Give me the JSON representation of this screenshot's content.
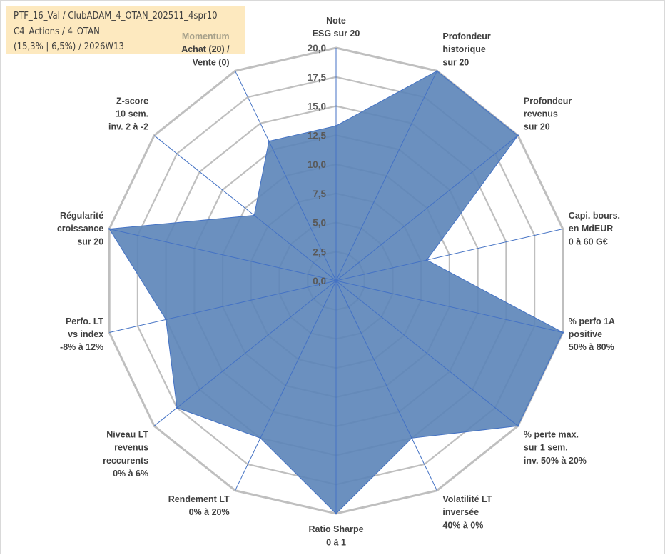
{
  "info": {
    "line1": "PTF_16_Val / ClubADAM_4_OTAN_202511_4spr10",
    "line2": "C4_Actions / 4_OTAN",
    "line3": "(15,3% | 6,5%) / 2026W13"
  },
  "colors": {
    "fill": "#5b84b8",
    "stroke": "#4472c4",
    "grid": "#bfbfbf",
    "highlight_bg": "#fde9bf"
  },
  "chart_data": {
    "type": "radar",
    "max": 20,
    "ticks": [
      "0,0",
      "2,5",
      "5,0",
      "7,5",
      "10,0",
      "12,5",
      "15,0",
      "17,5",
      "20,0"
    ],
    "tick_values": [
      0,
      2.5,
      5,
      7.5,
      10,
      12.5,
      15,
      17.5,
      20
    ],
    "axes": [
      {
        "lines": [
          "Note",
          "ESG sur 20"
        ],
        "value": 13.3
      },
      {
        "lines": [
          "Profondeur",
          "historique",
          "sur 20"
        ],
        "value": 20
      },
      {
        "lines": [
          "Profondeur",
          "revenus",
          "sur 20"
        ],
        "value": 20
      },
      {
        "lines": [
          "Capi. bours.",
          "en MdEUR",
          "0 à 60 G€"
        ],
        "value": 8
      },
      {
        "lines": [
          "% perfo 1A",
          "positive",
          "50% à 80%"
        ],
        "value": 20
      },
      {
        "lines": [
          "% perte max.",
          "sur 1 sem.",
          "inv. 50% à 20%"
        ],
        "value": 20
      },
      {
        "lines": [
          "Volatilité LT",
          "inversée",
          "40% à 0%"
        ],
        "value": 15
      },
      {
        "lines": [
          "Ratio Sharpe",
          "0 à 1"
        ],
        "value": 20
      },
      {
        "lines": [
          "Rendement LT",
          "0% à 20%"
        ],
        "value": 15
      },
      {
        "lines": [
          "Niveau LT",
          "revenus",
          "reccurents",
          "0% à 6%"
        ],
        "value": 17.5
      },
      {
        "lines": [
          "Perfo. LT",
          "vs index",
          "-8% à 12%"
        ],
        "value": 15
      },
      {
        "lines": [
          "Régularité",
          "croissance",
          "sur 20"
        ],
        "value": 20
      },
      {
        "lines": [
          "Z-score",
          "10 sem.",
          "inv. 2 à -2"
        ],
        "value": 9
      },
      {
        "lines": [
          "Momentum",
          "Achat (20) /",
          "Vente (0)"
        ],
        "value": 13.3
      }
    ]
  }
}
